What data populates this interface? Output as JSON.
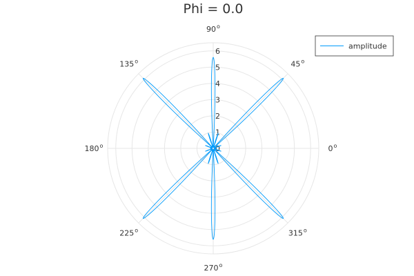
{
  "chart_data": {
    "type": "line",
    "subtype": "polar",
    "title": "Phi = 0.0",
    "radial_ticks": [
      "0",
      "1",
      "2",
      "3",
      "4",
      "5",
      "6"
    ],
    "radial_range": [
      0,
      6.5
    ],
    "angular_ticks": [
      {
        "deg": 0,
        "label": "0"
      },
      {
        "deg": 45,
        "label": "45"
      },
      {
        "deg": 90,
        "label": "90"
      },
      {
        "deg": 135,
        "label": "135"
      },
      {
        "deg": 180,
        "label": "180"
      },
      {
        "deg": 225,
        "label": "225"
      },
      {
        "deg": 270,
        "label": "270"
      },
      {
        "deg": 315,
        "label": "315"
      }
    ],
    "degree_symbol": "o",
    "grid": true,
    "legend_position": "top-right",
    "series": [
      {
        "name": "amplitude",
        "color": "#009AFA",
        "lobes": [
          {
            "angle_deg": 45,
            "peak": 6.1
          },
          {
            "angle_deg": 90,
            "peak": 5.6
          },
          {
            "angle_deg": 135,
            "peak": 6.1
          },
          {
            "angle_deg": 225,
            "peak": 6.1
          },
          {
            "angle_deg": 270,
            "peak": 5.6
          },
          {
            "angle_deg": 315,
            "peak": 6.1
          }
        ],
        "lobe_half_width_deg": 3.2,
        "sidelobes": [
          {
            "angle_deg": 72,
            "peak": 0.9
          },
          {
            "angle_deg": 108,
            "peak": 0.9
          },
          {
            "angle_deg": 252,
            "peak": 0.9
          },
          {
            "angle_deg": 288,
            "peak": 0.9
          },
          {
            "angle_deg": 20,
            "peak": 0.4
          },
          {
            "angle_deg": 160,
            "peak": 0.4
          },
          {
            "angle_deg": 200,
            "peak": 0.4
          },
          {
            "angle_deg": 340,
            "peak": 0.4
          }
        ],
        "sidelobe_half_width_deg": 2.5,
        "baseline": 0.05
      }
    ]
  },
  "legend": {
    "label": "amplitude"
  }
}
